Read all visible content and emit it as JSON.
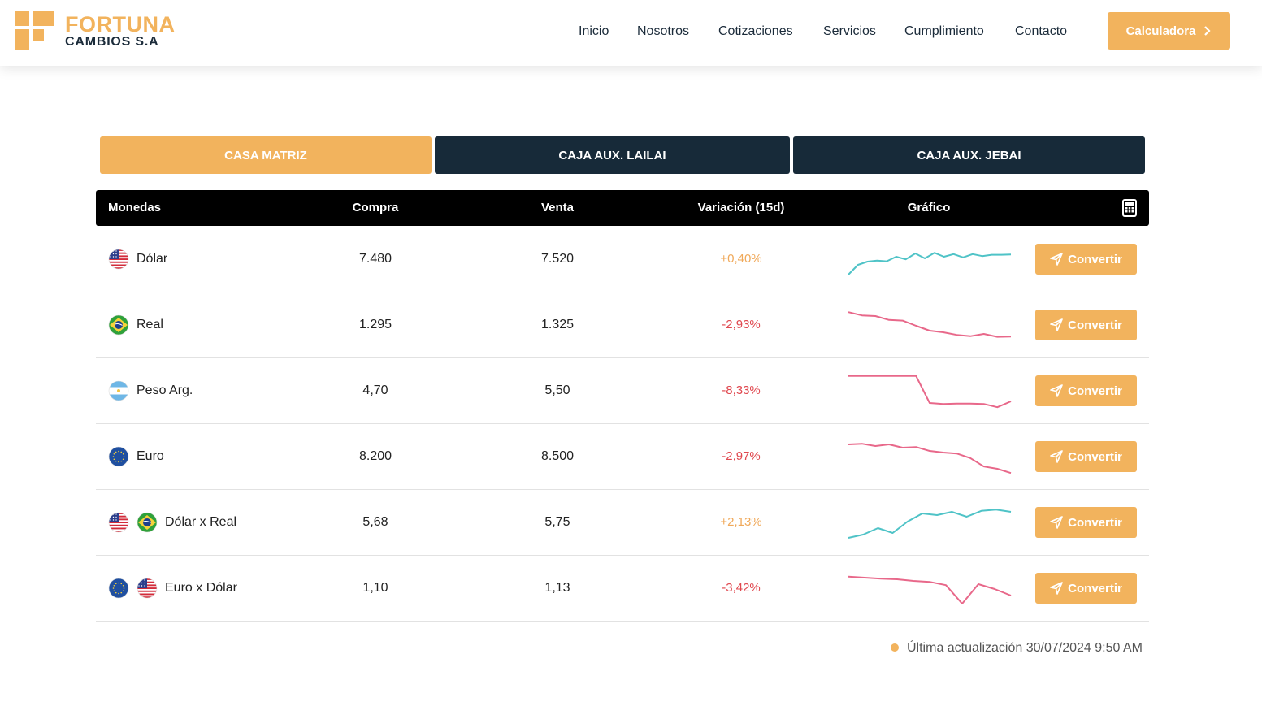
{
  "brand": {
    "name_line1": "FORTUNA",
    "name_line2": "CAMBIOS S.A",
    "accent": "#f2b35d",
    "dark": "#172a39"
  },
  "nav": {
    "items": [
      {
        "label": "Inicio"
      },
      {
        "label": "Nosotros"
      },
      {
        "label": "Cotizaciones"
      },
      {
        "label": "Servicios"
      },
      {
        "label": "Cumplimiento"
      },
      {
        "label": "Contacto"
      }
    ],
    "calc_button": "Calculadora"
  },
  "tabs": [
    {
      "label": "CASA MATRIZ",
      "active": true
    },
    {
      "label": "CAJA AUX. LAILAI",
      "active": false
    },
    {
      "label": "CAJA AUX. JEBAI",
      "active": false
    }
  ],
  "table": {
    "headers": {
      "currency": "Monedas",
      "buy": "Compra",
      "sell": "Venta",
      "variation": "Variación (15d)",
      "chart": "Gráfico"
    },
    "rows": [
      {
        "name": "Dólar",
        "flags": [
          "us-flag"
        ],
        "buy": "7.480",
        "sell": "7.520",
        "variation": "+0,40%",
        "trend": "up",
        "color": "#4fc3c7",
        "spark": [
          0.05,
          0.35,
          0.45,
          0.48,
          0.46,
          0.6,
          0.52,
          0.7,
          0.55,
          0.72,
          0.6,
          0.68,
          0.58,
          0.68,
          0.62,
          0.66,
          0.66,
          0.67
        ],
        "button": "Convertir"
      },
      {
        "name": "Real",
        "flags": [
          "br-flag"
        ],
        "buy": "1.295",
        "sell": "1.325",
        "variation": "-2,93%",
        "trend": "down",
        "color": "#e8688a",
        "spark": [
          0.92,
          0.82,
          0.8,
          0.68,
          0.66,
          0.5,
          0.35,
          0.3,
          0.22,
          0.18,
          0.25,
          0.16,
          0.17
        ],
        "button": "Convertir"
      },
      {
        "name": "Peso Arg.",
        "flags": [
          "ar-flag"
        ],
        "buy": "4,70",
        "sell": "5,50",
        "variation": "-8,33%",
        "trend": "down",
        "color": "#e8688a",
        "spark": [
          0.98,
          0.98,
          0.98,
          0.98,
          0.98,
          0.98,
          0.15,
          0.12,
          0.13,
          0.13,
          0.12,
          0.02,
          0.2
        ],
        "button": "Convertir"
      },
      {
        "name": "Euro",
        "flags": [
          "eu-flag"
        ],
        "buy": "8.200",
        "sell": "8.500",
        "variation": "-2,97%",
        "trend": "down",
        "color": "#e8688a",
        "spark": [
          0.9,
          0.92,
          0.85,
          0.9,
          0.8,
          0.82,
          0.7,
          0.65,
          0.62,
          0.48,
          0.22,
          0.15,
          0.02
        ],
        "button": "Convertir"
      },
      {
        "name": "Dólar x Real",
        "flags": [
          "us-flag",
          "br-flag"
        ],
        "buy": "5,68",
        "sell": "5,75",
        "variation": "+2,13%",
        "trend": "up",
        "color": "#4fc3c7",
        "spark": [
          0.05,
          0.15,
          0.35,
          0.2,
          0.55,
          0.8,
          0.75,
          0.85,
          0.7,
          0.88,
          0.92,
          0.85
        ],
        "button": "Convertir"
      },
      {
        "name": "Euro x Dólar",
        "flags": [
          "eu-flag",
          "us-flag"
        ],
        "buy": "1,10",
        "sell": "1,13",
        "variation": "-3,42%",
        "trend": "down",
        "color": "#e8688a",
        "spark": [
          0.88,
          0.85,
          0.82,
          0.8,
          0.75,
          0.72,
          0.62,
          0.05,
          0.65,
          0.5,
          0.3
        ],
        "button": "Convertir"
      }
    ]
  },
  "footer": {
    "last_update": "Última actualización 30/07/2024 9:50 AM"
  }
}
